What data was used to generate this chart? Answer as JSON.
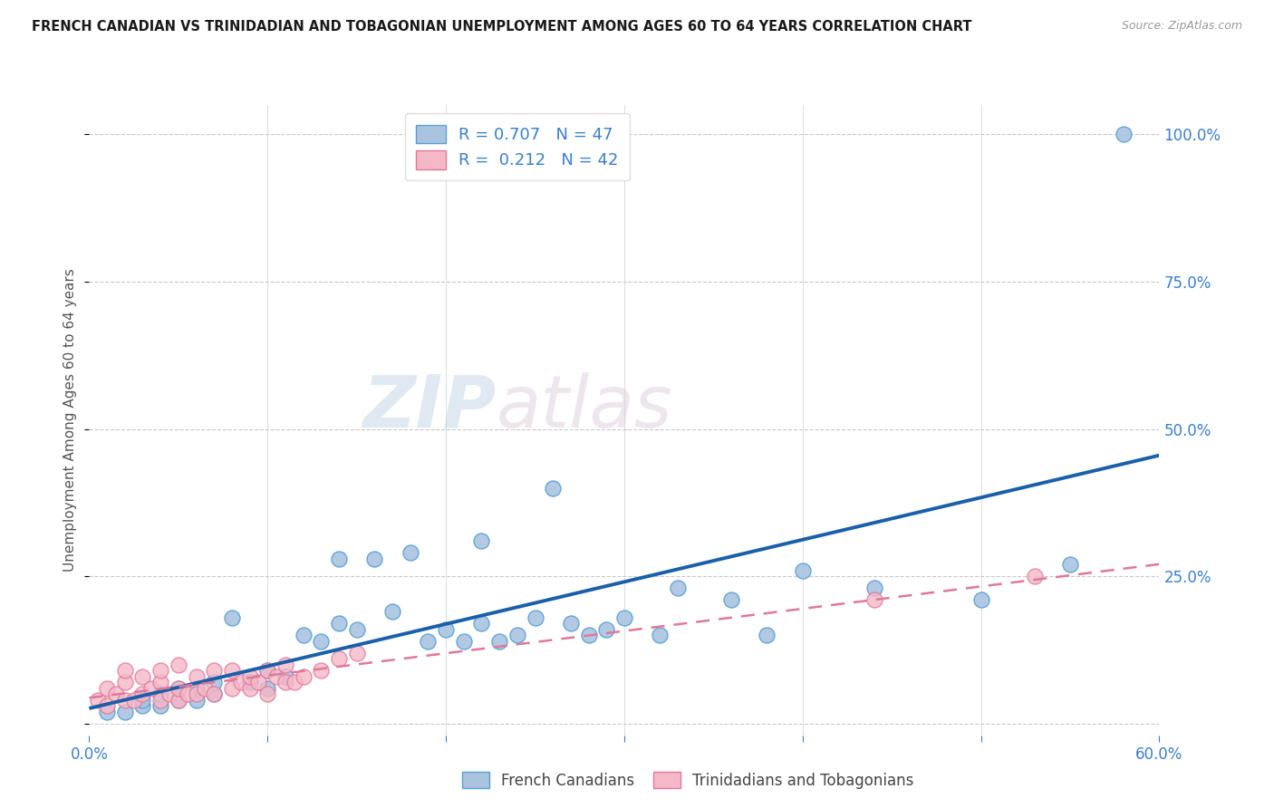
{
  "title": "FRENCH CANADIAN VS TRINIDADIAN AND TOBAGONIAN UNEMPLOYMENT AMONG AGES 60 TO 64 YEARS CORRELATION CHART",
  "source": "Source: ZipAtlas.com",
  "ylabel": "Unemployment Among Ages 60 to 64 years",
  "xlim": [
    0.0,
    0.6
  ],
  "ylim": [
    -0.02,
    1.05
  ],
  "xticks": [
    0.0,
    0.1,
    0.2,
    0.3,
    0.4,
    0.5,
    0.6
  ],
  "xticklabels": [
    "0.0%",
    "",
    "",
    "",
    "",
    "",
    "60.0%"
  ],
  "ytick_positions": [
    0.0,
    0.25,
    0.5,
    0.75,
    1.0
  ],
  "ytick_labels": [
    "",
    "25.0%",
    "50.0%",
    "75.0%",
    "100.0%"
  ],
  "R_french": 0.707,
  "N_french": 47,
  "R_trini": 0.212,
  "N_trini": 42,
  "french_color": "#aac4e0",
  "french_edge": "#5a9fd4",
  "trini_color": "#f5b8c8",
  "trini_edge": "#e07898",
  "line_blue": "#1a5faa",
  "line_pink": "#e07898",
  "legend_text_color": "#3a7fcc",
  "watermark_zip": "ZIP",
  "watermark_atlas": "atlas",
  "background_color": "#ffffff",
  "grid_color": "#c8c8c8",
  "french_x": [
    0.01,
    0.02,
    0.03,
    0.03,
    0.04,
    0.04,
    0.05,
    0.05,
    0.06,
    0.06,
    0.07,
    0.07,
    0.08,
    0.09,
    0.1,
    0.1,
    0.11,
    0.12,
    0.13,
    0.14,
    0.14,
    0.15,
    0.16,
    0.17,
    0.18,
    0.19,
    0.2,
    0.21,
    0.22,
    0.22,
    0.23,
    0.24,
    0.25,
    0.26,
    0.27,
    0.28,
    0.29,
    0.3,
    0.32,
    0.33,
    0.36,
    0.38,
    0.4,
    0.44,
    0.5,
    0.55,
    0.58
  ],
  "french_y": [
    0.02,
    0.02,
    0.03,
    0.04,
    0.03,
    0.05,
    0.04,
    0.06,
    0.04,
    0.06,
    0.05,
    0.07,
    0.18,
    0.07,
    0.06,
    0.09,
    0.08,
    0.15,
    0.14,
    0.17,
    0.28,
    0.16,
    0.28,
    0.19,
    0.29,
    0.14,
    0.16,
    0.14,
    0.17,
    0.31,
    0.14,
    0.15,
    0.18,
    0.4,
    0.17,
    0.15,
    0.16,
    0.18,
    0.15,
    0.23,
    0.21,
    0.15,
    0.26,
    0.23,
    0.21,
    0.27,
    1.0
  ],
  "trini_x": [
    0.005,
    0.01,
    0.01,
    0.015,
    0.02,
    0.02,
    0.02,
    0.025,
    0.03,
    0.03,
    0.035,
    0.04,
    0.04,
    0.04,
    0.045,
    0.05,
    0.05,
    0.05,
    0.055,
    0.06,
    0.06,
    0.065,
    0.07,
    0.07,
    0.08,
    0.08,
    0.085,
    0.09,
    0.09,
    0.095,
    0.1,
    0.1,
    0.105,
    0.11,
    0.11,
    0.115,
    0.12,
    0.13,
    0.14,
    0.15,
    0.44,
    0.53
  ],
  "trini_y": [
    0.04,
    0.03,
    0.06,
    0.05,
    0.04,
    0.07,
    0.09,
    0.04,
    0.05,
    0.08,
    0.06,
    0.04,
    0.07,
    0.09,
    0.05,
    0.04,
    0.06,
    0.1,
    0.05,
    0.05,
    0.08,
    0.06,
    0.05,
    0.09,
    0.06,
    0.09,
    0.07,
    0.06,
    0.08,
    0.07,
    0.05,
    0.09,
    0.08,
    0.07,
    0.1,
    0.07,
    0.08,
    0.09,
    0.11,
    0.12,
    0.21,
    0.25
  ]
}
